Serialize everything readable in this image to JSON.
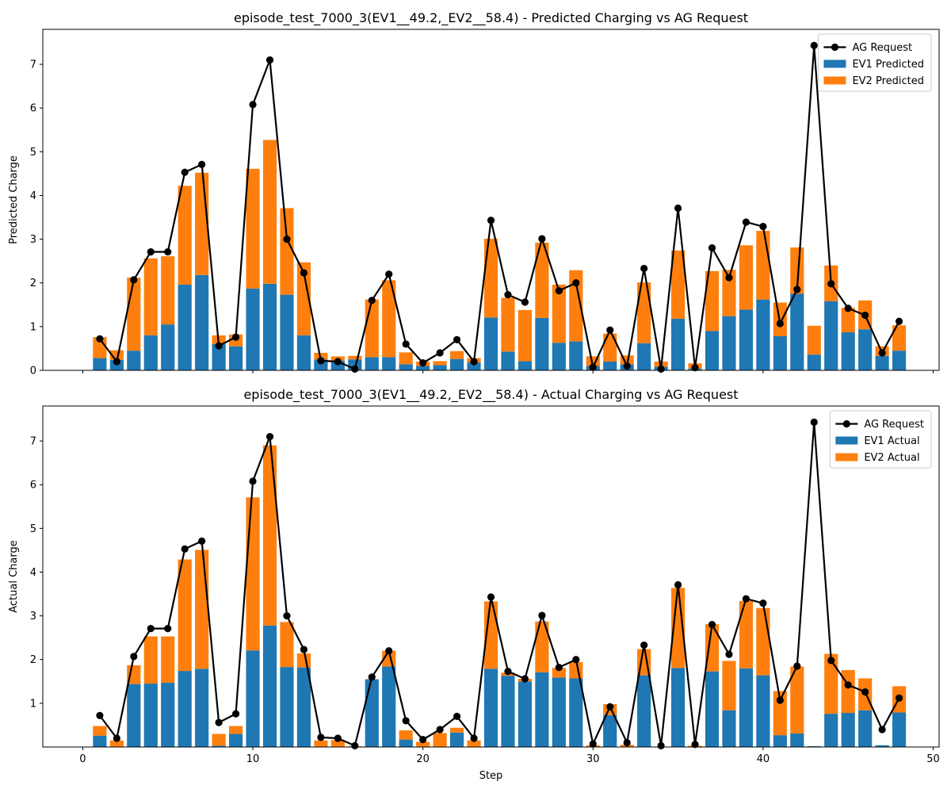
{
  "chart_data": [
    {
      "type": "bar",
      "stacked": true,
      "title": "episode_test_7000_3(EV1__49.2,_EV2__58.4) - Predicted Charging vs AG Request",
      "xlabel": "",
      "ylabel": "Predicted Charge",
      "xlim": [
        -2.35,
        50.35
      ],
      "ylim": [
        0,
        7.8
      ],
      "xticks": [
        0,
        10,
        20,
        30,
        40,
        50
      ],
      "yticks": [
        0,
        1,
        2,
        3,
        4,
        5,
        6,
        7
      ],
      "show_xtick_labels": false,
      "legend_position": "upper right",
      "x": [
        1,
        2,
        3,
        4,
        5,
        6,
        7,
        8,
        9,
        10,
        11,
        12,
        13,
        14,
        15,
        16,
        17,
        18,
        19,
        20,
        21,
        22,
        23,
        24,
        25,
        26,
        27,
        28,
        29,
        30,
        31,
        32,
        33,
        34,
        35,
        36,
        37,
        38,
        39,
        40,
        41,
        42,
        43,
        44,
        45,
        46,
        47,
        48
      ],
      "line_series": {
        "name": "AG Request",
        "color": "#000000",
        "values": [
          0.72,
          0.2,
          2.07,
          2.71,
          2.71,
          4.53,
          4.71,
          0.56,
          0.76,
          6.08,
          7.1,
          3.0,
          2.23,
          0.22,
          0.2,
          0.03,
          1.6,
          2.2,
          0.6,
          0.17,
          0.4,
          0.7,
          0.2,
          3.43,
          1.73,
          1.56,
          3.01,
          1.82,
          2.0,
          0.07,
          0.92,
          0.1,
          2.33,
          0.03,
          3.71,
          0.06,
          2.8,
          2.12,
          3.39,
          3.29,
          1.07,
          1.85,
          7.43,
          1.98,
          1.42,
          1.26,
          0.4,
          1.12
        ]
      },
      "series": [
        {
          "name": "EV1 Predicted",
          "color": "#1f77b4",
          "values": [
            0.28,
            0.24,
            0.45,
            0.8,
            1.05,
            1.96,
            2.18,
            0.6,
            0.55,
            1.87,
            1.98,
            1.73,
            0.8,
            0.25,
            0.22,
            0.25,
            0.3,
            0.3,
            0.14,
            0.1,
            0.12,
            0.26,
            0.18,
            1.21,
            0.43,
            0.21,
            1.2,
            0.63,
            0.66,
            0.1,
            0.2,
            0.14,
            0.62,
            0.08,
            1.18,
            0.04,
            0.9,
            1.24,
            1.39,
            1.62,
            0.78,
            1.75,
            0.36,
            1.58,
            0.87,
            0.94,
            0.33,
            0.45
          ]
        },
        {
          "name": "EV2 Predicted",
          "color": "#ff7f0e",
          "values": [
            0.48,
            0.22,
            1.67,
            1.76,
            1.56,
            2.26,
            2.34,
            0.2,
            0.27,
            2.74,
            3.29,
            1.98,
            1.67,
            0.15,
            0.1,
            0.08,
            1.32,
            1.76,
            0.27,
            0.1,
            0.09,
            0.18,
            0.1,
            1.8,
            1.23,
            1.17,
            1.72,
            1.33,
            1.63,
            0.22,
            0.64,
            0.2,
            1.39,
            0.12,
            1.56,
            0.12,
            1.37,
            1.06,
            1.47,
            1.57,
            0.77,
            1.06,
            0.66,
            0.82,
            0.56,
            0.66,
            0.22,
            0.58
          ]
        }
      ]
    },
    {
      "type": "bar",
      "stacked": true,
      "title": "episode_test_7000_3(EV1__49.2,_EV2__58.4) - Actual Charging vs AG Request",
      "xlabel": "Step",
      "ylabel": "Actual Charge",
      "xlim": [
        -2.35,
        50.35
      ],
      "ylim": [
        0,
        7.8
      ],
      "xticks": [
        0,
        10,
        20,
        30,
        40,
        50
      ],
      "yticks": [
        1,
        2,
        3,
        4,
        5,
        6,
        7
      ],
      "show_xtick_labels": true,
      "legend_position": "upper right",
      "x": [
        1,
        2,
        3,
        4,
        5,
        6,
        7,
        8,
        9,
        10,
        11,
        12,
        13,
        14,
        15,
        16,
        17,
        18,
        19,
        20,
        21,
        22,
        23,
        24,
        25,
        26,
        27,
        28,
        29,
        30,
        31,
        32,
        33,
        34,
        35,
        36,
        37,
        38,
        39,
        40,
        41,
        42,
        43,
        44,
        45,
        46,
        47,
        48
      ],
      "line_series": {
        "name": "AG Request",
        "color": "#000000",
        "values": [
          0.72,
          0.2,
          2.07,
          2.71,
          2.71,
          4.53,
          4.71,
          0.56,
          0.76,
          6.08,
          7.1,
          3.0,
          2.23,
          0.22,
          0.2,
          0.03,
          1.6,
          2.2,
          0.6,
          0.17,
          0.4,
          0.7,
          0.2,
          3.43,
          1.73,
          1.56,
          3.01,
          1.82,
          2.0,
          0.07,
          0.92,
          0.1,
          2.33,
          0.03,
          3.71,
          0.06,
          2.8,
          2.12,
          3.39,
          3.29,
          1.07,
          1.85,
          7.43,
          1.98,
          1.42,
          1.26,
          0.4,
          1.12
        ]
      },
      "series": [
        {
          "name": "EV1 Actual",
          "color": "#1f77b4",
          "values": [
            0.26,
            0.0,
            1.44,
            1.45,
            1.47,
            1.74,
            1.79,
            0.03,
            0.3,
            2.21,
            2.78,
            1.83,
            1.82,
            0.0,
            0.0,
            0.0,
            1.55,
            1.84,
            0.17,
            0.0,
            0.0,
            0.33,
            0.0,
            1.79,
            1.63,
            1.5,
            1.71,
            1.59,
            1.57,
            0.0,
            0.73,
            0.0,
            1.64,
            0.0,
            1.81,
            0.0,
            1.73,
            0.84,
            1.8,
            1.64,
            0.27,
            0.31,
            0.02,
            0.76,
            0.78,
            0.84,
            0.04,
            0.79
          ]
        },
        {
          "name": "EV2 Actual",
          "color": "#ff7f0e",
          "values": [
            0.22,
            0.15,
            0.43,
            1.08,
            1.06,
            2.55,
            2.72,
            0.27,
            0.18,
            3.5,
            4.12,
            1.03,
            0.32,
            0.15,
            0.16,
            0.02,
            0.0,
            0.36,
            0.21,
            0.12,
            0.32,
            0.11,
            0.15,
            1.54,
            0.07,
            0.06,
            1.16,
            0.22,
            0.37,
            0.04,
            0.25,
            0.05,
            0.6,
            0.0,
            1.83,
            0.03,
            1.08,
            1.13,
            1.54,
            1.54,
            1.01,
            1.53,
            0.0,
            1.37,
            0.98,
            0.73,
            0.0,
            0.6
          ]
        }
      ]
    }
  ]
}
